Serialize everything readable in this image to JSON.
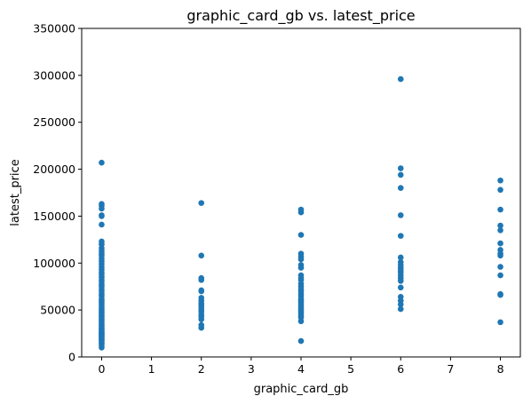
{
  "chart_data": {
    "type": "scatter",
    "title": "graphic_card_gb vs. latest_price",
    "xlabel": "graphic_card_gb",
    "ylabel": "latest_price",
    "xlim": [
      -0.4,
      8.4
    ],
    "ylim": [
      0,
      350000
    ],
    "xticks": [
      "0",
      "1",
      "2",
      "3",
      "4",
      "5",
      "6",
      "7",
      "8"
    ],
    "yticks": [
      "0",
      "50000",
      "100000",
      "150000",
      "200000",
      "250000",
      "300000",
      "350000"
    ],
    "grid": false,
    "marker_color": "#1f77b4",
    "series": [
      {
        "x": [
          0,
          0,
          0,
          0,
          0,
          0,
          0,
          0,
          0,
          0,
          0,
          0,
          0,
          0,
          0,
          0,
          0,
          0,
          0,
          0,
          0,
          0,
          0,
          0,
          0,
          0,
          0,
          0,
          0,
          0,
          0,
          0,
          0,
          0,
          0,
          0,
          0,
          0,
          0,
          0,
          0,
          0,
          0,
          0,
          0,
          0,
          0,
          0,
          0,
          0,
          0,
          0,
          0,
          0,
          0,
          0,
          0,
          0,
          0,
          0,
          0,
          0,
          0,
          0,
          0,
          0,
          2,
          2,
          2,
          2,
          2,
          2,
          2,
          2,
          2,
          2,
          2,
          2,
          2,
          2,
          2,
          2,
          2,
          2,
          4,
          4,
          4,
          4,
          4,
          4,
          4,
          4,
          4,
          4,
          4,
          4,
          4,
          4,
          4,
          4,
          4,
          4,
          4,
          4,
          4,
          4,
          4,
          4,
          4,
          4,
          4,
          4,
          4,
          4,
          6,
          6,
          6,
          6,
          6,
          6,
          6,
          6,
          6,
          6,
          6,
          6,
          6,
          6,
          6,
          6,
          6,
          6,
          6,
          6,
          8,
          8,
          8,
          8,
          8,
          8,
          8,
          8,
          8,
          8,
          8,
          8,
          8,
          8
        ],
        "y": [
          207000,
          163000,
          161000,
          158000,
          151000,
          150000,
          141000,
          123000,
          120000,
          116000,
          113000,
          110000,
          108000,
          105000,
          102000,
          99000,
          96000,
          93000,
          90000,
          88000,
          85000,
          82000,
          80000,
          77000,
          75000,
          72000,
          70000,
          67000,
          65000,
          62000,
          60000,
          58000,
          56000,
          54000,
          52000,
          50000,
          48000,
          47000,
          45000,
          44000,
          42000,
          40000,
          39000,
          37000,
          36000,
          34000,
          33000,
          31000,
          30000,
          29000,
          28000,
          27000,
          26000,
          25000,
          24000,
          23000,
          22000,
          21000,
          20000,
          19000,
          18000,
          17000,
          15000,
          14000,
          12000,
          10000,
          164000,
          108000,
          84000,
          82000,
          71000,
          70000,
          63000,
          60000,
          57000,
          55000,
          53000,
          50000,
          48000,
          45000,
          43000,
          40000,
          34000,
          31000,
          157000,
          154000,
          130000,
          110000,
          107000,
          104000,
          98000,
          95000,
          87000,
          84000,
          82000,
          78000,
          75000,
          72000,
          70000,
          67000,
          65000,
          62000,
          60000,
          58000,
          56000,
          54000,
          52000,
          50000,
          48000,
          46000,
          44000,
          42000,
          38000,
          17000,
          296000,
          201000,
          194000,
          180000,
          151000,
          129000,
          106000,
          101000,
          98000,
          95000,
          92000,
          90000,
          87000,
          84000,
          81000,
          74000,
          64000,
          60000,
          56000,
          51000,
          188000,
          178000,
          157000,
          140000,
          135000,
          121000,
          114000,
          110000,
          108000,
          96000,
          87000,
          67000,
          66000,
          37000
        ]
      }
    ]
  }
}
